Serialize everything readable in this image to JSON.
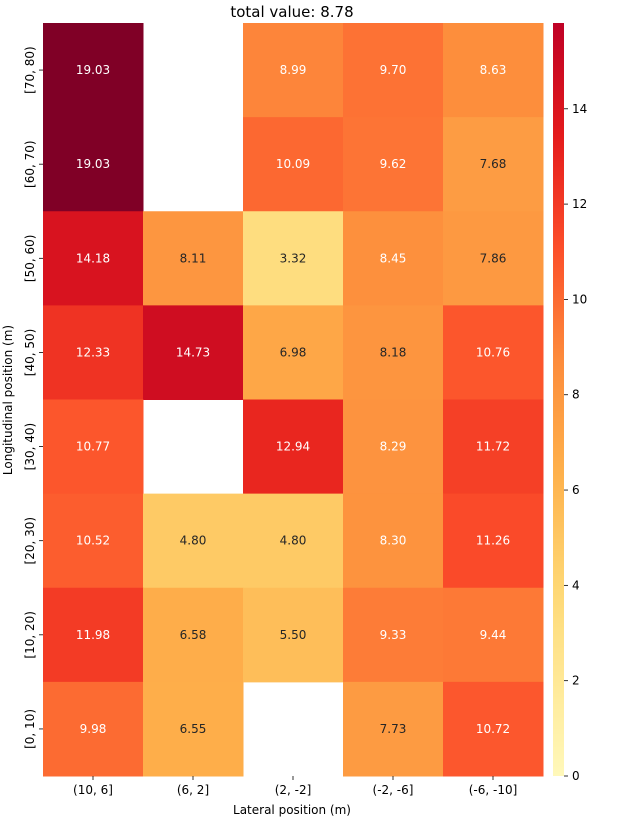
{
  "chart_data": {
    "type": "heatmap",
    "title": "total value: 8.78",
    "xlabel": "Lateral position (m)",
    "ylabel": "Longitudinal position (m)",
    "x_categories": [
      "(10, 6]",
      "(6, 2]",
      "(2, -2]",
      "(-2, -6]",
      "(-6, -10]"
    ],
    "y_categories": [
      "[70, 80)",
      "[60, 70)",
      "[50, 60)",
      "[40, 50)",
      "[30, 40)",
      "[20, 30)",
      "[10, 20)",
      "[0, 10)"
    ],
    "values": [
      [
        19.03,
        null,
        8.99,
        9.7,
        8.63
      ],
      [
        19.03,
        null,
        10.09,
        9.62,
        7.68
      ],
      [
        14.18,
        8.11,
        3.32,
        8.45,
        7.86
      ],
      [
        12.33,
        14.73,
        6.98,
        8.18,
        10.76
      ],
      [
        10.77,
        null,
        12.94,
        8.29,
        11.72
      ],
      [
        10.52,
        4.8,
        4.8,
        8.3,
        11.26
      ],
      [
        11.98,
        6.58,
        5.5,
        9.33,
        9.44
      ],
      [
        9.98,
        6.55,
        null,
        7.73,
        10.72
      ]
    ],
    "colorscale": "YlOrRd",
    "vmin": 0,
    "vmax": 15.8,
    "colorbar_ticks": [
      0,
      2,
      4,
      6,
      8,
      10,
      12,
      14
    ]
  }
}
